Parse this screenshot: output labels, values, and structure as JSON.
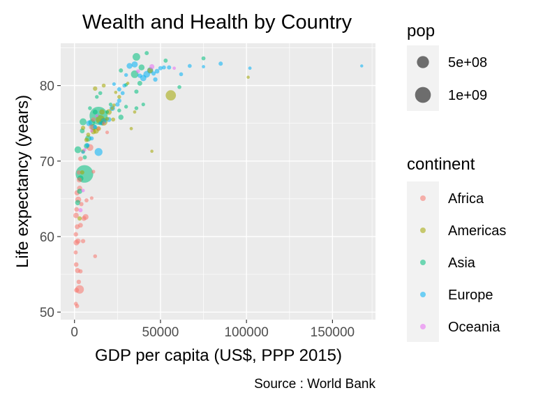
{
  "chart_data": {
    "type": "scatter",
    "title": "Wealth and Health by Country",
    "xlabel": "GDP per capita (US$, PPP 2015)",
    "ylabel": "Life expectancy (years)",
    "caption": "Source : World Bank",
    "xlim": [
      -8000,
      175000
    ],
    "ylim": [
      49,
      85.6
    ],
    "xticks": [
      0,
      50000,
      100000,
      150000
    ],
    "xtick_labels": [
      "0",
      "50000",
      "100000",
      "150000"
    ],
    "yticks": [
      50,
      60,
      70,
      80
    ],
    "ytick_labels": [
      "50",
      "60",
      "70",
      "80"
    ],
    "grid": true,
    "legend_position": "right",
    "size_legend": {
      "title": "pop",
      "entries": [
        {
          "label": "5e+08",
          "value": 500000000
        },
        {
          "label": "1e+09",
          "value": 1000000000
        }
      ]
    },
    "color_legend": {
      "title": "continent",
      "entries": [
        {
          "label": "Africa",
          "color": "#F8766D"
        },
        {
          "label": "Americas",
          "color": "#A3A500"
        },
        {
          "label": "Asia",
          "color": "#00BF7D"
        },
        {
          "label": "Europe",
          "color": "#00B0F6"
        },
        {
          "label": "Oceania",
          "color": "#E76BF3"
        }
      ]
    },
    "series": [
      {
        "name": "Africa",
        "color": "#F8766D",
        "points": [
          [
            1500,
            50.8,
            8000000
          ],
          [
            800,
            51.1,
            5000000
          ],
          [
            1200,
            52.9,
            20000000
          ],
          [
            3000,
            53.0,
            180000000
          ],
          [
            2500,
            54.0,
            12000000
          ],
          [
            1800,
            55.5,
            25000000
          ],
          [
            3500,
            55.4,
            8000000
          ],
          [
            1000,
            56.3,
            15000000
          ],
          [
            700,
            57.9,
            6000000
          ],
          [
            12000,
            57.4,
            4000000
          ],
          [
            1100,
            59.2,
            40000000
          ],
          [
            2000,
            59.4,
            30000000
          ],
          [
            5000,
            59.4,
            10000000
          ],
          [
            800,
            60.3,
            12000000
          ],
          [
            1600,
            61.3,
            22000000
          ],
          [
            3500,
            61.5,
            18000000
          ],
          [
            5500,
            62.4,
            20000000
          ],
          [
            900,
            62.8,
            35000000
          ],
          [
            6500,
            62.6,
            45000000
          ],
          [
            1200,
            63.6,
            14000000
          ],
          [
            4000,
            64.3,
            9000000
          ],
          [
            2200,
            64.9,
            50000000
          ],
          [
            7000,
            64.8,
            6000000
          ],
          [
            10000,
            65.1,
            2000000
          ],
          [
            1500,
            65.8,
            30000000
          ],
          [
            3000,
            66.4,
            28000000
          ],
          [
            2800,
            67.5,
            26000000
          ],
          [
            2500,
            68.5,
            9000000
          ],
          [
            11000,
            68.6,
            2500000
          ],
          [
            3500,
            70.3,
            14000000
          ],
          [
            9000,
            71.8,
            85000000
          ],
          [
            10000,
            74.5,
            35000000
          ],
          [
            11000,
            75.5,
            11000000
          ],
          [
            14000,
            74.3,
            1300000
          ],
          [
            19000,
            73.8,
            2000000
          ],
          [
            17000,
            75.0,
            1200000
          ]
        ]
      },
      {
        "name": "Americas",
        "color": "#A3A500",
        "points": [
          [
            3000,
            62.4,
            10000000
          ],
          [
            4500,
            68.5,
            9000000
          ],
          [
            5000,
            71.3,
            6500000
          ],
          [
            7000,
            72.8,
            11000000
          ],
          [
            8000,
            73.5,
            6000000
          ],
          [
            11000,
            73.9,
            30000000
          ],
          [
            12500,
            74.0,
            45000000
          ],
          [
            14000,
            74.3,
            18000000
          ],
          [
            17000,
            75.2,
            125000000
          ],
          [
            15000,
            75.5,
            205000000
          ],
          [
            19000,
            75.6,
            3300000
          ],
          [
            20000,
            76.5,
            43000000
          ],
          [
            22000,
            77.0,
            3400000
          ],
          [
            16000,
            76.5,
            32000000
          ],
          [
            23000,
            77.4,
            600000
          ],
          [
            33000,
            74.3,
            400000
          ],
          [
            24000,
            79.1,
            280000
          ],
          [
            26000,
            78.5,
            4000000
          ],
          [
            35000,
            76.5,
            300000
          ],
          [
            45000,
            71.3,
            100000
          ],
          [
            56000,
            78.7,
            320000000
          ],
          [
            44000,
            82.0,
            36000000
          ],
          [
            12000,
            79.6,
            11000000
          ],
          [
            17000,
            80.0,
            4500000
          ],
          [
            5000,
            74.4,
            9800000
          ],
          [
            101000,
            81.1,
            60000
          ],
          [
            31000,
            80.3,
            100000
          ],
          [
            22500,
            75.5,
            5400000
          ]
        ]
      },
      {
        "name": "Asia",
        "color": "#00BF7D",
        "points": [
          [
            1900,
            64.5,
            30000000
          ],
          [
            3000,
            66.0,
            28000000
          ],
          [
            3500,
            67.7,
            50000000
          ],
          [
            5800,
            68.3,
            1300000000
          ],
          [
            6000,
            70.5,
            7000000
          ],
          [
            2000,
            71.5,
            90000000
          ],
          [
            7000,
            72.0,
            30000000
          ],
          [
            8000,
            73.0,
            60000000
          ],
          [
            4500,
            74.0,
            20000000
          ],
          [
            5000,
            75.2,
            95000000
          ],
          [
            10000,
            75.1,
            80000000
          ],
          [
            14000,
            76.0,
            1380000000
          ],
          [
            11000,
            74.5,
            68000000
          ],
          [
            16000,
            75.0,
            8000000
          ],
          [
            12000,
            76.5,
            20000000
          ],
          [
            9000,
            77.0,
            4000000
          ],
          [
            13000,
            78.5,
            3000000
          ],
          [
            15000,
            79.0,
            5000000
          ],
          [
            19000,
            76.5,
            1500000
          ],
          [
            21000,
            77.5,
            2500000
          ],
          [
            27000,
            75.8,
            28000000
          ],
          [
            26000,
            76.7,
            4200000
          ],
          [
            30000,
            77.2,
            3000000
          ],
          [
            36000,
            77.0,
            4000000
          ],
          [
            38000,
            80.3,
            20000000
          ],
          [
            35000,
            81.5,
            125000000
          ],
          [
            27000,
            82.0,
            8000000
          ],
          [
            36000,
            83.8,
            127000000
          ],
          [
            42000,
            84.3,
            7000000
          ],
          [
            61000,
            79.8,
            4000000
          ],
          [
            75000,
            83.6,
            5600000
          ],
          [
            53000,
            83.3,
            7000000
          ],
          [
            36000,
            79.2,
            8500000
          ],
          [
            39000,
            82.4,
            51000000
          ],
          [
            40000,
            77.5,
            2000000
          ],
          [
            30000,
            80.1,
            1500000
          ]
        ]
      },
      {
        "name": "Europe",
        "color": "#00B0F6",
        "points": [
          [
            5000,
            71.2,
            3600000
          ],
          [
            7500,
            72.1,
            10000000
          ],
          [
            10000,
            73.0,
            7000000
          ],
          [
            12000,
            74.5,
            9000000
          ],
          [
            14000,
            71.2,
            143000000
          ],
          [
            15000,
            75.0,
            4000000
          ],
          [
            17000,
            75.3,
            45000000
          ],
          [
            20000,
            75.5,
            20000000
          ],
          [
            22000,
            77.0,
            38000000
          ],
          [
            25000,
            77.5,
            10000000
          ],
          [
            26000,
            78.0,
            10500000
          ],
          [
            28000,
            79.0,
            5500000
          ],
          [
            29000,
            80.0,
            4200000
          ],
          [
            30000,
            81.4,
            3200000
          ],
          [
            32000,
            82.6,
            46500000
          ],
          [
            35000,
            82.8,
            60000000
          ],
          [
            38000,
            81.3,
            11000000
          ],
          [
            40000,
            81.0,
            64000000
          ],
          [
            42000,
            81.5,
            82000000
          ],
          [
            44000,
            82.0,
            66000000
          ],
          [
            46000,
            81.6,
            9000000
          ],
          [
            48000,
            81.9,
            17000000
          ],
          [
            50000,
            82.3,
            9700000
          ],
          [
            52000,
            82.4,
            5600000
          ],
          [
            55000,
            82.4,
            8000000
          ],
          [
            62000,
            81.5,
            4700000
          ],
          [
            67000,
            82.6,
            5000000
          ],
          [
            75000,
            82.5,
            300000
          ],
          [
            85000,
            82.9,
            8300000
          ],
          [
            102000,
            82.3,
            550000
          ],
          [
            167000,
            82.6,
            38000
          ],
          [
            26000,
            79.5,
            9000000
          ],
          [
            23000,
            80.2,
            2000000
          ],
          [
            8500,
            75.0,
            45000000
          ],
          [
            47000,
            80.8,
            11500000
          ]
        ]
      },
      {
        "name": "Oceania",
        "color": "#E76BF3",
        "points": [
          [
            3500,
            63.5,
            8000000
          ],
          [
            5000,
            66.1,
            900000
          ],
          [
            6000,
            71.5,
            600000
          ],
          [
            10000,
            74.0,
            200000
          ],
          [
            13000,
            76.0,
            100000
          ],
          [
            37000,
            81.9,
            4600000
          ],
          [
            45000,
            82.5,
            24000000
          ],
          [
            58000,
            82.3,
            300000
          ]
        ]
      }
    ]
  }
}
